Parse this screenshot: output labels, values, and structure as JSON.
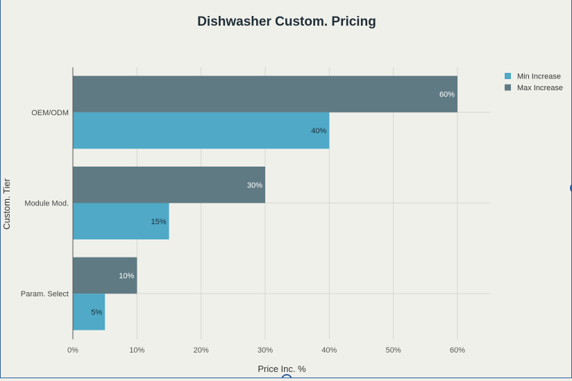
{
  "chart_data": {
    "type": "bar",
    "orientation": "horizontal",
    "title": "Dishwasher Custom. Pricing",
    "xlabel": "Price Inc. %",
    "ylabel": "Custom. Tier",
    "categories": [
      "OEM/ODM",
      "Module Mod.",
      "Param. Select"
    ],
    "series": [
      {
        "name": "Min Increase",
        "values": [
          40,
          15,
          5
        ],
        "color": "#4fa9c7",
        "label_color": "#1f2f38"
      },
      {
        "name": "Max Increase",
        "values": [
          60,
          30,
          10
        ],
        "color": "#5f7a83",
        "label_color": "#ffffff"
      }
    ],
    "xlim": [
      0,
      65
    ],
    "xticks": [
      0,
      10,
      20,
      30,
      40,
      50,
      60
    ],
    "tick_format": "{v}%",
    "data_label_format": "{v}%",
    "grid": true,
    "legend_position": "top-right"
  }
}
